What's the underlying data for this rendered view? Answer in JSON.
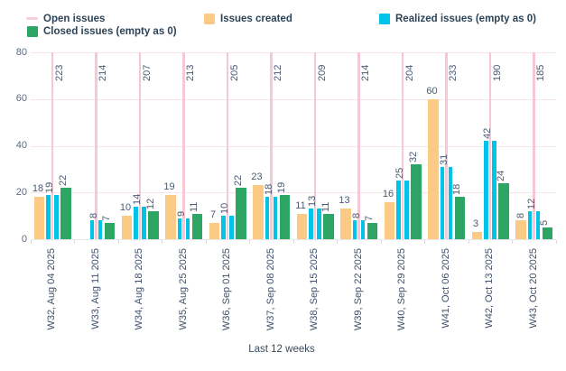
{
  "legend": {
    "items": [
      {
        "label": "Open issues",
        "color": "#f8cfdb",
        "swatch": "line"
      },
      {
        "label": "Issues created",
        "color": "#fbca84",
        "swatch": "square"
      },
      {
        "label": "Realized issues (empty as 0)",
        "color": "#00c3e8",
        "swatch": "square"
      },
      {
        "label": "Closed issues (empty as 0)",
        "color": "#2ca565",
        "swatch": "square"
      }
    ]
  },
  "chart_data": {
    "type": "bar",
    "title": "",
    "xlabel": "Last 12 weeks",
    "ylabel": "",
    "ylim": [
      0,
      80
    ],
    "yticks": [
      0,
      20,
      40,
      60,
      80
    ],
    "grid": true,
    "legend_position": "top",
    "categories": [
      "W32, Aug 04 2025",
      "W33, Aug 11 2025",
      "W34, Aug 18 2025",
      "W35, Aug 25 2025",
      "W36, Sep 01 2025",
      "W37, Sep 08 2025",
      "W38, Sep 15 2025",
      "W39, Sep 22 2025",
      "W40, Sep 29 2025",
      "W41, Oct 06 2025",
      "W42, Oct 13 2025",
      "W43, Oct 20 2025"
    ],
    "series": [
      {
        "name": "Open issues",
        "type": "line",
        "color": "#f6c8d5",
        "values": [
          223,
          214,
          207,
          213,
          205,
          212,
          209,
          214,
          204,
          233,
          190,
          185
        ]
      },
      {
        "name": "Issues created",
        "type": "bar",
        "color": "#fbca84",
        "values": [
          18,
          0,
          10,
          19,
          7,
          23,
          11,
          13,
          16,
          60,
          3,
          8
        ]
      },
      {
        "name": "Realized issues (empty as 0)",
        "type": "bar",
        "color": "#00c3e8",
        "values": [
          19,
          8,
          14,
          9,
          10,
          18,
          13,
          8,
          25,
          31,
          42,
          12
        ]
      },
      {
        "name": "Closed issues (empty as 0)",
        "type": "bar",
        "color": "#2ca565",
        "values": [
          22,
          7,
          12,
          11,
          22,
          19,
          11,
          7,
          32,
          18,
          24,
          5
        ]
      }
    ],
    "created_label_rotated": [
      false,
      false,
      false,
      false,
      false,
      false,
      false,
      false,
      false,
      false,
      false,
      true
    ]
  },
  "colors": {
    "grid_pink": "#fbe3ea",
    "open_line_pink": "#f6c8d5",
    "baseline_gray": "#e8e8ea",
    "tick_gray": "#dcdce0",
    "value_label": "#4b5a72",
    "axis_label": "#40506a"
  }
}
